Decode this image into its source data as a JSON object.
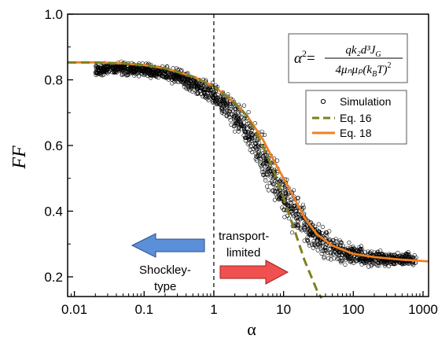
{
  "chart_data": {
    "type": "scatter",
    "title": "",
    "xlabel": "α",
    "ylabel": "FF",
    "xscale": "log",
    "xlim": [
      0.008,
      1200
    ],
    "ylim": [
      0.14,
      1.0
    ],
    "x_ticks": [
      0.01,
      0.1,
      1,
      10,
      100,
      1000
    ],
    "x_tick_labels": [
      "0.01",
      "0.1",
      "1",
      "10",
      "100",
      "1000"
    ],
    "y_ticks": [
      0.2,
      0.4,
      0.6,
      0.8,
      1.0
    ],
    "y_tick_labels": [
      "0.2",
      "0.4",
      "0.6",
      "0.8",
      "1.0"
    ],
    "reference_line": {
      "x": 1,
      "style": "dashed",
      "color": "#000000"
    },
    "legend": {
      "position": "top-right",
      "entries": [
        {
          "name": "Simulation",
          "marker": "open-circle",
          "color": "#000000"
        },
        {
          "name": "Eq. 16",
          "style": "dashed",
          "color": "#7f7f1f"
        },
        {
          "name": "Eq. 18",
          "style": "solid",
          "color": "#f08020"
        }
      ]
    },
    "formula": {
      "lhs": "α",
      "lhs_exp": "2",
      "numerator": "qk₂d³J",
      "numerator_sub": "G",
      "denominator": "4μₙμₚ(k",
      "denominator_sub": "B",
      "denominator_tail": "T)",
      "denominator_exp": "2"
    },
    "annotations": {
      "transport_line1": "transport-",
      "transport_line2": "limited",
      "shockley_line1": "Shockley-",
      "shockley_line2": "type"
    },
    "series": [
      {
        "name": "Simulation",
        "marker": "open-circle",
        "color": "#000000",
        "x": [
          0.02,
          0.03,
          0.05,
          0.1,
          0.2,
          0.3,
          0.5,
          0.7,
          1,
          1.5,
          2,
          3,
          4,
          5,
          6,
          7,
          8,
          10,
          12,
          15,
          20,
          30,
          40,
          50,
          70,
          100,
          150,
          200,
          300,
          500,
          800
        ],
        "y": [
          0.83,
          0.835,
          0.835,
          0.83,
          0.82,
          0.81,
          0.79,
          0.77,
          0.755,
          0.72,
          0.69,
          0.65,
          0.6,
          0.57,
          0.54,
          0.51,
          0.49,
          0.45,
          0.42,
          0.39,
          0.36,
          0.32,
          0.3,
          0.29,
          0.275,
          0.27,
          0.262,
          0.258,
          0.255,
          0.253,
          0.252
        ],
        "spread": 0.02
      },
      {
        "name": "Eq. 16",
        "style": "dashed",
        "color": "#7f7f1f",
        "x": [
          0.008,
          0.02,
          0.05,
          0.1,
          0.2,
          0.5,
          1,
          2,
          3,
          5,
          7,
          10,
          15,
          20,
          30,
          35
        ],
        "y": [
          0.853,
          0.853,
          0.85,
          0.845,
          0.835,
          0.81,
          0.78,
          0.73,
          0.69,
          0.6,
          0.53,
          0.44,
          0.33,
          0.25,
          0.16,
          0.135
        ]
      },
      {
        "name": "Eq. 18",
        "style": "solid",
        "color": "#f08020",
        "x": [
          0.008,
          0.02,
          0.05,
          0.1,
          0.2,
          0.5,
          1,
          2,
          3,
          5,
          7,
          10,
          15,
          20,
          30,
          50,
          100,
          200,
          500,
          1000,
          1200
        ],
        "y": [
          0.853,
          0.853,
          0.85,
          0.845,
          0.835,
          0.81,
          0.78,
          0.73,
          0.69,
          0.62,
          0.56,
          0.5,
          0.43,
          0.38,
          0.33,
          0.295,
          0.27,
          0.26,
          0.252,
          0.248,
          0.247
        ]
      }
    ]
  }
}
